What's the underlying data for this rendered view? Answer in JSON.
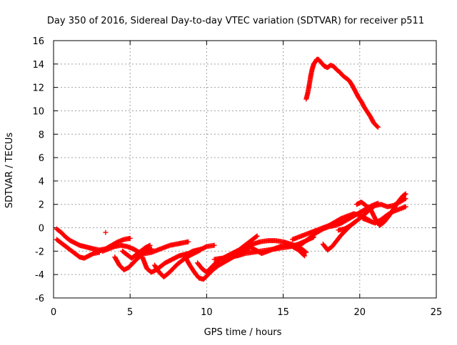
{
  "chart_data": {
    "type": "scatter",
    "title": "Day 350 of 2016, Sidereal Day-to-day VTEC variation (SDTVAR) for receiver p511",
    "xlabel": "GPS time / hours",
    "ylabel": "SDTVAR / TECUs",
    "xlim": [
      0,
      25
    ],
    "ylim": [
      -6,
      16
    ],
    "xticks": [
      0,
      5,
      10,
      15,
      20,
      25
    ],
    "yticks": [
      -6,
      -4,
      -2,
      0,
      2,
      4,
      6,
      8,
      10,
      12,
      14,
      16
    ],
    "grid": true,
    "marker": "+",
    "color": "#ff0000",
    "series": [
      {
        "x": [
          16.5,
          16.6,
          16.7,
          16.8,
          16.9,
          17.0,
          17.1,
          17.2,
          17.3,
          17.5,
          17.7,
          17.9,
          18.1,
          18.3,
          18.5,
          18.7,
          18.9,
          19.1,
          19.3,
          19.5,
          19.7,
          19.9,
          20.1,
          20.3,
          20.5,
          20.7,
          20.9,
          21.1,
          21.2
        ],
        "y": [
          11.0,
          11.5,
          12.2,
          13.0,
          13.6,
          14.0,
          14.2,
          14.4,
          14.4,
          14.1,
          13.8,
          13.7,
          13.9,
          13.8,
          13.5,
          13.3,
          13.0,
          12.8,
          12.6,
          12.2,
          11.7,
          11.2,
          10.8,
          10.3,
          9.9,
          9.5,
          9.0,
          8.7,
          8.6
        ]
      },
      {
        "x": [
          0.2,
          0.5,
          0.8,
          1.1,
          1.4,
          1.7,
          2.0,
          2.3,
          2.6,
          3.0,
          3.4,
          3.8,
          4.2,
          4.6,
          5.0
        ],
        "y": [
          -0.1,
          -0.4,
          -0.8,
          -1.1,
          -1.3,
          -1.5,
          -1.6,
          -1.7,
          -1.8,
          -1.9,
          -1.8,
          -1.5,
          -1.2,
          -1.0,
          -0.9
        ]
      },
      {
        "x": [
          0.2,
          0.5,
          0.8,
          1.1,
          1.4,
          1.7,
          2.0,
          2.3,
          2.6,
          3.0
        ],
        "y": [
          -1.0,
          -1.3,
          -1.6,
          -1.9,
          -2.2,
          -2.5,
          -2.6,
          -2.4,
          -2.2,
          -2.1
        ]
      },
      {
        "x": [
          3.4
        ],
        "y": [
          -0.4
        ]
      },
      {
        "x": [
          3.2,
          3.6,
          4.0,
          4.4,
          4.8,
          5.2,
          5.6,
          6.0,
          6.4,
          6.8,
          7.2,
          7.6,
          8.0,
          8.4,
          8.8
        ],
        "y": [
          -2.0,
          -1.8,
          -1.6,
          -1.5,
          -1.6,
          -1.8,
          -2.1,
          -2.2,
          -2.1,
          -1.9,
          -1.7,
          -1.5,
          -1.4,
          -1.3,
          -1.2
        ]
      },
      {
        "x": [
          4.0,
          4.3,
          4.6,
          4.9,
          5.2,
          5.5,
          5.8,
          6.1,
          6.4
        ],
        "y": [
          -2.5,
          -3.2,
          -3.6,
          -3.4,
          -3.0,
          -2.6,
          -2.3,
          -2.0,
          -1.8
        ]
      },
      {
        "x": [
          4.5,
          4.8,
          5.1,
          5.4,
          5.7,
          6.0,
          6.3
        ],
        "y": [
          -2.0,
          -2.3,
          -2.6,
          -2.3,
          -2.0,
          -1.7,
          -1.5
        ]
      },
      {
        "x": [
          5.8,
          6.1,
          6.4,
          6.7,
          7.0,
          7.3,
          7.6,
          7.9,
          8.2,
          8.5,
          8.8,
          9.1,
          9.4,
          9.7,
          10.0,
          10.5
        ],
        "y": [
          -2.5,
          -3.5,
          -3.8,
          -3.6,
          -3.3,
          -3.0,
          -2.8,
          -2.6,
          -2.4,
          -2.3,
          -2.2,
          -2.0,
          -1.9,
          -1.8,
          -1.6,
          -1.5
        ]
      },
      {
        "x": [
          6.6,
          6.9,
          7.2,
          7.5,
          7.8,
          8.1,
          8.4,
          8.7,
          9.0,
          9.3,
          9.6
        ],
        "y": [
          -3.2,
          -3.8,
          -4.2,
          -3.9,
          -3.5,
          -3.1,
          -2.8,
          -2.5,
          -2.3,
          -2.1,
          -1.9
        ]
      },
      {
        "x": [
          8.6,
          8.9,
          9.2,
          9.5,
          9.8,
          10.1,
          10.4,
          10.8,
          11.2,
          11.6,
          12.0,
          12.4,
          12.8
        ],
        "y": [
          -2.5,
          -3.2,
          -3.8,
          -4.3,
          -4.4,
          -4.0,
          -3.6,
          -3.2,
          -2.9,
          -2.6,
          -2.3,
          -2.0,
          -1.8
        ]
      },
      {
        "x": [
          9.4,
          9.7,
          10.0,
          10.3,
          10.6,
          10.9,
          11.2,
          11.5,
          11.8,
          12.1,
          12.4,
          12.7,
          13.0,
          13.3
        ],
        "y": [
          -3.0,
          -3.5,
          -3.8,
          -3.4,
          -3.0,
          -2.7,
          -2.5,
          -2.3,
          -2.1,
          -1.9,
          -1.6,
          -1.3,
          -1.0,
          -0.7
        ]
      },
      {
        "x": [
          10.5,
          11.0,
          11.5,
          12.0,
          12.5,
          13.0,
          13.5,
          14.0,
          14.5,
          15.0,
          15.5,
          16.0,
          16.5,
          17.0
        ],
        "y": [
          -2.7,
          -2.6,
          -2.5,
          -2.4,
          -2.2,
          -2.1,
          -2.0,
          -1.9,
          -1.8,
          -1.7,
          -1.6,
          -1.4,
          -1.1,
          -0.8
        ]
      },
      {
        "x": [
          12.0,
          12.5,
          13.0,
          13.5,
          14.0,
          14.5,
          15.0,
          15.5,
          16.0,
          16.5
        ],
        "y": [
          -2.2,
          -1.8,
          -1.4,
          -1.2,
          -1.1,
          -1.1,
          -1.2,
          -1.4,
          -1.6,
          -2.1
        ]
      },
      {
        "x": [
          12.8,
          13.2,
          13.6,
          14.0,
          14.4,
          14.8,
          15.2,
          15.6,
          16.0,
          16.4
        ],
        "y": [
          -1.6,
          -1.9,
          -2.2,
          -2.0,
          -1.8,
          -1.6,
          -1.5,
          -1.6,
          -1.9,
          -2.4
        ]
      },
      {
        "x": [
          15.6,
          16.0,
          16.4,
          16.8,
          17.2,
          17.6,
          18.0,
          18.4,
          18.8,
          19.2,
          19.6,
          20.0,
          20.4,
          20.8
        ],
        "y": [
          -1.0,
          -0.8,
          -0.6,
          -0.4,
          -0.2,
          0.0,
          0.2,
          0.5,
          0.8,
          1.0,
          1.2,
          1.1,
          0.8,
          0.5
        ]
      },
      {
        "x": [
          16.0,
          16.4,
          16.8,
          17.2,
          17.6,
          18.0,
          18.4,
          18.8,
          19.2,
          19.6,
          20.0,
          20.4,
          20.8,
          21.2
        ],
        "y": [
          -1.6,
          -1.2,
          -0.8,
          -0.4,
          -0.1,
          0.1,
          0.2,
          0.4,
          0.7,
          1.0,
          1.3,
          1.6,
          1.9,
          2.1
        ]
      },
      {
        "x": [
          17.6,
          17.9,
          18.2,
          18.5,
          18.8,
          19.1,
          19.4,
          19.7
        ],
        "y": [
          -1.4,
          -1.9,
          -1.6,
          -1.1,
          -0.6,
          -0.2,
          0.2,
          0.5
        ]
      },
      {
        "x": [
          18.6,
          19.0,
          19.4,
          19.8,
          20.2,
          20.6,
          21.0,
          21.4,
          21.8,
          22.2,
          22.6,
          23.0
        ],
        "y": [
          -0.2,
          -0.1,
          0.2,
          0.6,
          1.0,
          1.5,
          1.9,
          2.0,
          1.8,
          1.9,
          2.2,
          2.5
        ]
      },
      {
        "x": [
          20.2,
          20.6,
          21.0,
          21.4,
          21.8,
          22.2,
          22.6,
          23.0
        ],
        "y": [
          0.8,
          0.6,
          0.4,
          0.7,
          1.1,
          1.4,
          1.6,
          1.8
        ]
      },
      {
        "x": [
          19.8,
          20.1,
          20.4,
          20.7,
          21.0,
          21.3,
          21.6,
          21.9,
          22.2,
          22.5,
          22.8,
          23.0
        ],
        "y": [
          2.0,
          2.2,
          1.9,
          1.6,
          0.8,
          0.2,
          0.5,
          1.0,
          1.6,
          2.2,
          2.7,
          2.9
        ]
      }
    ]
  }
}
